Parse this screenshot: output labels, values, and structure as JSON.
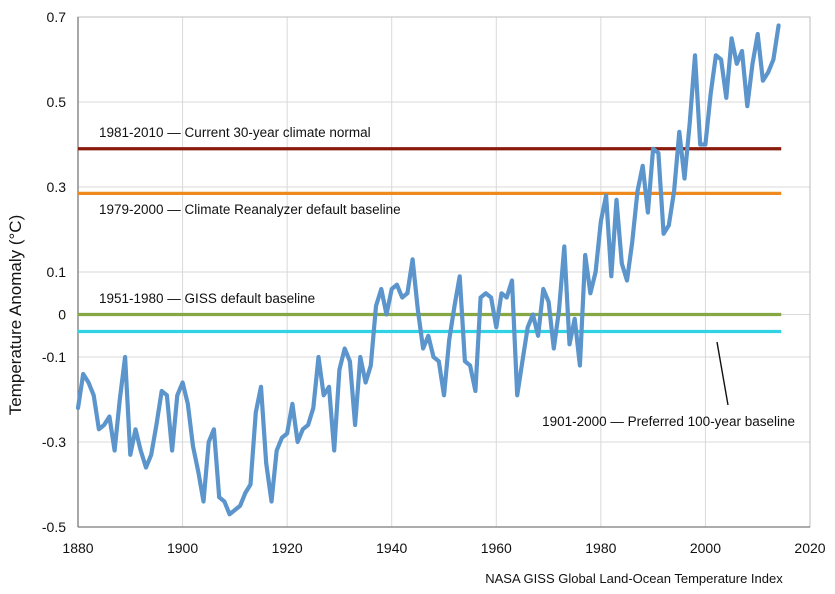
{
  "chart_data": {
    "type": "line",
    "title": "",
    "xlabel": "",
    "ylabel": "Temperature Anomaly (°C)",
    "source": "NASA GISS Global Land-Ocean Temperature Index",
    "xlim": [
      1880,
      2020
    ],
    "ylim": [
      -0.5,
      0.7
    ],
    "grid": true,
    "x_ticks": [
      "1880",
      "1900",
      "1920",
      "1940",
      "1960",
      "1980",
      "2000",
      "2020"
    ],
    "y_ticks": [
      {
        "value": 0.7,
        "label": "0.7"
      },
      {
        "value": 0.5,
        "label": "0.5"
      },
      {
        "value": 0.3,
        "label": "0.3"
      },
      {
        "value": 0.1,
        "label": "0.1"
      },
      {
        "value": 0.0,
        "label": "0"
      },
      {
        "value": -0.1,
        "label": "-0.1"
      },
      {
        "value": -0.3,
        "label": "-0.3"
      },
      {
        "value": -0.5,
        "label": "-0.5"
      }
    ],
    "series": [
      {
        "color": "#5b95cc",
        "x": [
          1880,
          1881,
          1882,
          1883,
          1884,
          1885,
          1886,
          1887,
          1888,
          1889,
          1890,
          1891,
          1892,
          1893,
          1894,
          1895,
          1896,
          1897,
          1898,
          1899,
          1900,
          1901,
          1902,
          1903,
          1904,
          1905,
          1906,
          1907,
          1908,
          1909,
          1910,
          1911,
          1912,
          1913,
          1914,
          1915,
          1916,
          1917,
          1918,
          1919,
          1920,
          1921,
          1922,
          1923,
          1924,
          1925,
          1926,
          1927,
          1928,
          1929,
          1930,
          1931,
          1932,
          1933,
          1934,
          1935,
          1936,
          1937,
          1938,
          1939,
          1940,
          1941,
          1942,
          1943,
          1944,
          1945,
          1946,
          1947,
          1948,
          1949,
          1950,
          1951,
          1952,
          1953,
          1954,
          1955,
          1956,
          1957,
          1958,
          1959,
          1960,
          1961,
          1962,
          1963,
          1964,
          1965,
          1966,
          1967,
          1968,
          1969,
          1970,
          1971,
          1972,
          1973,
          1974,
          1975,
          1976,
          1977,
          1978,
          1979,
          1980,
          1981,
          1982,
          1983,
          1984,
          1985,
          1986,
          1987,
          1988,
          1989,
          1990,
          1991,
          1992,
          1993,
          1994,
          1995,
          1996,
          1997,
          1998,
          1999,
          2000,
          2001,
          2002,
          2003,
          2004,
          2005,
          2006,
          2007,
          2008,
          2009,
          2010,
          2011,
          2012,
          2013,
          2014
        ],
        "values": [
          -0.22,
          -0.14,
          -0.16,
          -0.19,
          -0.27,
          -0.26,
          -0.24,
          -0.32,
          -0.2,
          -0.1,
          -0.33,
          -0.27,
          -0.32,
          -0.36,
          -0.33,
          -0.26,
          -0.18,
          -0.19,
          -0.32,
          -0.19,
          -0.16,
          -0.21,
          -0.31,
          -0.37,
          -0.44,
          -0.3,
          -0.27,
          -0.43,
          -0.44,
          -0.47,
          -0.46,
          -0.45,
          -0.42,
          -0.4,
          -0.23,
          -0.17,
          -0.35,
          -0.44,
          -0.32,
          -0.29,
          -0.28,
          -0.21,
          -0.3,
          -0.27,
          -0.26,
          -0.22,
          -0.1,
          -0.19,
          -0.17,
          -0.32,
          -0.13,
          -0.08,
          -0.11,
          -0.26,
          -0.1,
          -0.16,
          -0.12,
          0.02,
          0.06,
          0.0,
          0.06,
          0.07,
          0.04,
          0.05,
          0.13,
          0.01,
          -0.08,
          -0.05,
          -0.1,
          -0.11,
          -0.19,
          -0.06,
          0.02,
          0.09,
          -0.11,
          -0.12,
          -0.18,
          0.04,
          0.05,
          0.04,
          -0.03,
          0.05,
          0.04,
          0.08,
          -0.19,
          -0.11,
          -0.03,
          0.0,
          -0.05,
          0.06,
          0.03,
          -0.08,
          0.01,
          0.16,
          -0.07,
          -0.01,
          -0.12,
          0.14,
          0.05,
          0.1,
          0.22,
          0.28,
          0.09,
          0.27,
          0.12,
          0.08,
          0.17,
          0.29,
          0.35,
          0.24,
          0.39,
          0.38,
          0.19,
          0.21,
          0.29,
          0.43,
          0.32,
          0.45,
          0.61,
          0.4,
          0.4,
          0.52,
          0.61,
          0.6,
          0.51,
          0.65,
          0.59,
          0.62,
          0.49,
          0.59,
          0.66,
          0.55,
          0.57,
          0.6,
          0.68
        ]
      }
    ],
    "baselines": [
      {
        "value": 0.39,
        "color": "#8a1a0c",
        "label": "1981-2010 — Current 30-year climate normal"
      },
      {
        "value": 0.285,
        "color": "#ee8a1e",
        "label": "1979-2000 — Climate Reanalyzer default baseline"
      },
      {
        "value": 0.0,
        "color": "#85a844",
        "label": "1951-1980 — GISS default baseline"
      },
      {
        "value": -0.04,
        "color": "#30d2e4",
        "label": "1901-2000 — Preferred 100-year baseline"
      }
    ]
  }
}
